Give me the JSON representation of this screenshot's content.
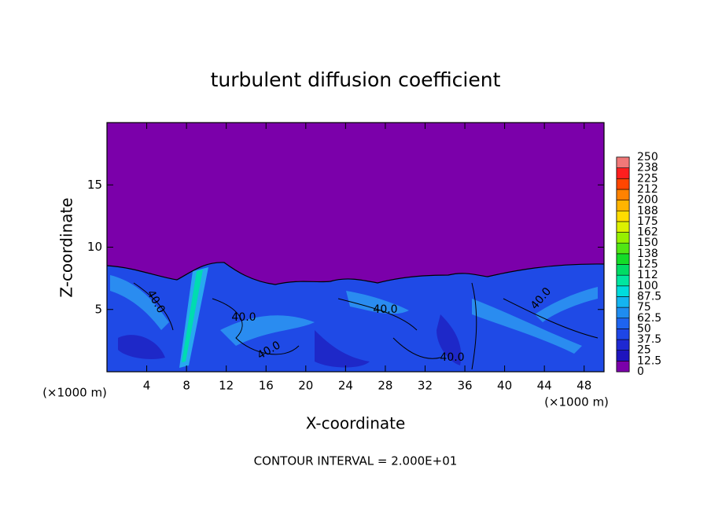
{
  "chart_data": {
    "type": "contour",
    "title": "turbulent diffusion coefficient",
    "x_label": "X-coordinate",
    "y_label": "Z-coordinate",
    "x_unit": "(×1000 m)",
    "xlim": [
      0,
      50
    ],
    "ylim": [
      0,
      20
    ],
    "xticks": [
      4,
      8,
      12,
      16,
      20,
      24,
      28,
      32,
      36,
      40,
      44,
      48
    ],
    "yticks": [
      5,
      10,
      15
    ],
    "colorbar": {
      "ticks": [
        0,
        12.5,
        25,
        37.5,
        50,
        62.5,
        75,
        87.5,
        100,
        {
          "value": 112.5,
          "label": "112"
        },
        125,
        {
          "value": 137.5,
          "label": "138"
        },
        150,
        {
          "value": 162.5,
          "label": "162"
        },
        175,
        {
          "value": 187.5,
          "label": "188"
        },
        200,
        {
          "value": 212.5,
          "label": "212"
        },
        225,
        {
          "value": 237.5,
          "label": "238"
        },
        250
      ],
      "colors": [
        "#7b00aa",
        "#1e14be",
        "#1e28d2",
        "#1e46e6",
        "#1e64f0",
        "#1e8cf0",
        "#14b4f0",
        "#00dcdc",
        "#00e6a0",
        "#00dc64",
        "#14dc28",
        "#50e614",
        "#96f000",
        "#dcf000",
        "#ffdc00",
        "#ffb400",
        "#ff8200",
        "#ff4600",
        "#ff1e1e",
        "#f07878"
      ]
    },
    "contour_labels": [
      {
        "value": 40,
        "label": "40.0"
      },
      {
        "value": 40,
        "label": "40.0"
      },
      {
        "value": 40,
        "label": "40.0"
      },
      {
        "value": 40,
        "label": "40.0"
      },
      {
        "value": 40,
        "label": "40.0"
      },
      {
        "value": 40,
        "label": "40.0"
      }
    ],
    "footnote": "CONTOUR INTERVAL = 2.000E+01"
  }
}
